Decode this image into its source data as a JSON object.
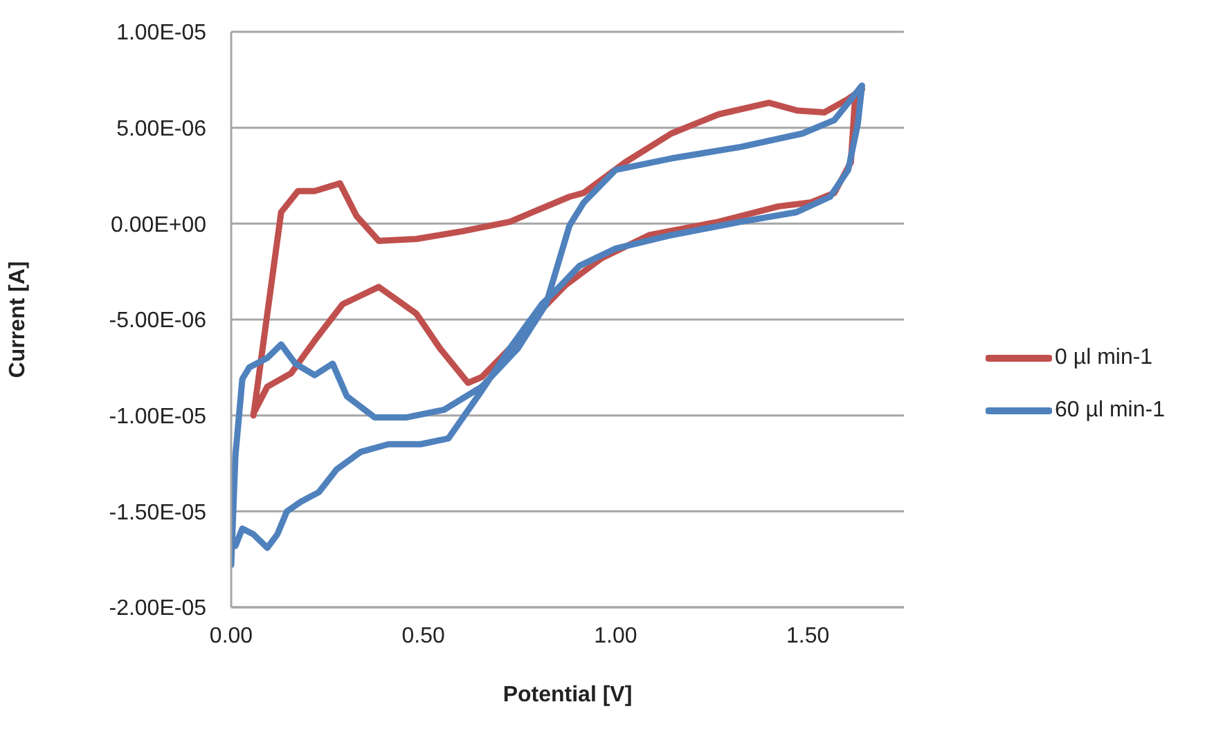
{
  "chart_data": {
    "type": "line",
    "xlabel": "Potential [V]",
    "ylabel": "Current [A]",
    "xlim": [
      0,
      1.75
    ],
    "xticks": [
      {
        "value": 0,
        "label": "0.00"
      },
      {
        "value": 0.5,
        "label": "0.50"
      },
      {
        "value": 1,
        "label": "1.00"
      },
      {
        "value": 1.5,
        "label": "1.50"
      }
    ],
    "ylim": [
      -2e-05,
      1e-05
    ],
    "yticks": [
      {
        "value": -2e-05,
        "label": "-2.00E-05"
      },
      {
        "value": -1.5e-05,
        "label": "-1.50E-05"
      },
      {
        "value": -1e-05,
        "label": "-1.00E-05"
      },
      {
        "value": -5e-06,
        "label": "-5.00E-06"
      },
      {
        "value": 0,
        "label": "0.00E+00"
      },
      {
        "value": 5e-06,
        "label": "5.00E-06"
      },
      {
        "value": 1e-05,
        "label": "1.00E-05"
      }
    ],
    "grid": "y",
    "legend": "right",
    "series": [
      {
        "name": "0 µl min-1",
        "color": "#c0504d",
        "x": [
          0.058,
          0.13,
          0.174,
          0.217,
          0.283,
          0.326,
          0.384,
          0.482,
          0.601,
          0.725,
          0.88,
          0.917,
          1.025,
          1.145,
          1.268,
          1.399,
          1.471,
          1.543,
          1.605,
          1.641,
          1.623,
          1.612,
          1.569,
          1.507,
          1.424,
          1.268,
          1.087,
          0.964,
          0.87,
          0.797,
          0.725,
          0.652,
          0.616,
          0.543,
          0.482,
          0.384,
          0.29,
          0.217,
          0.156,
          0.094,
          0.058
        ],
        "values": [
          -1e-05,
          6e-07,
          1.7e-06,
          1.7e-06,
          2.1e-06,
          4e-07,
          -9e-07,
          -8e-07,
          -4e-07,
          1e-07,
          1.4e-06,
          1.6e-06,
          3.2e-06,
          4.7e-06,
          5.7e-06,
          6.3e-06,
          5.9e-06,
          5.8e-06,
          6.5e-06,
          7e-06,
          6.6e-06,
          3.2e-06,
          1.6e-06,
          1.1e-06,
          9e-07,
          1e-07,
          -6e-07,
          -1.8e-06,
          -3.2e-06,
          -4.7e-06,
          -6.5e-06,
          -8e-06,
          -8.3e-06,
          -6.5e-06,
          -4.7e-06,
          -3.3e-06,
          -4.2e-06,
          -6.1e-06,
          -7.8e-06,
          -8.5e-06,
          -9.9e-06
        ]
      },
      {
        "name": "60 µl min-1",
        "color": "#4f81bd",
        "x": [
          0,
          0.011,
          0.029,
          0.047,
          0.094,
          0.13,
          0.167,
          0.217,
          0.264,
          0.301,
          0.373,
          0.457,
          0.554,
          0.652,
          0.746,
          0.819,
          0.88,
          0.917,
          1.0,
          1.145,
          1.326,
          1.486,
          1.569,
          1.641,
          1.63,
          1.605,
          1.558,
          1.471,
          1.326,
          1.145,
          1.0,
          0.906,
          0.844,
          0.808,
          0.725,
          0.652,
          0.565,
          0.493,
          0.409,
          0.337,
          0.275,
          0.228,
          0.181,
          0.145,
          0.12,
          0.094,
          0.058,
          0.029,
          0.011
        ],
        "values": [
          -1.78e-05,
          -1.21e-05,
          -8.1e-06,
          -7.5e-06,
          -7e-06,
          -6.3e-06,
          -7.3e-06,
          -7.9e-06,
          -7.3e-06,
          -9e-06,
          -1.01e-05,
          -1.01e-05,
          -9.7e-06,
          -8.5e-06,
          -6.5e-06,
          -4.2e-06,
          -1e-07,
          1.1e-06,
          2.8e-06,
          3.4e-06,
          4e-06,
          4.7e-06,
          5.4e-06,
          7.2e-06,
          5.2e-06,
          2.8e-06,
          1.4e-06,
          6e-07,
          1e-07,
          -6e-07,
          -1.3e-06,
          -2.2e-06,
          -3.5e-06,
          -4.2e-06,
          -6.5e-06,
          -8.7e-06,
          -1.12e-05,
          -1.15e-05,
          -1.15e-05,
          -1.19e-05,
          -1.28e-05,
          -1.4e-05,
          -1.45e-05,
          -1.5e-05,
          -1.62e-05,
          -1.69e-05,
          -1.62e-05,
          -1.59e-05,
          -1.68e-05
        ]
      }
    ]
  }
}
